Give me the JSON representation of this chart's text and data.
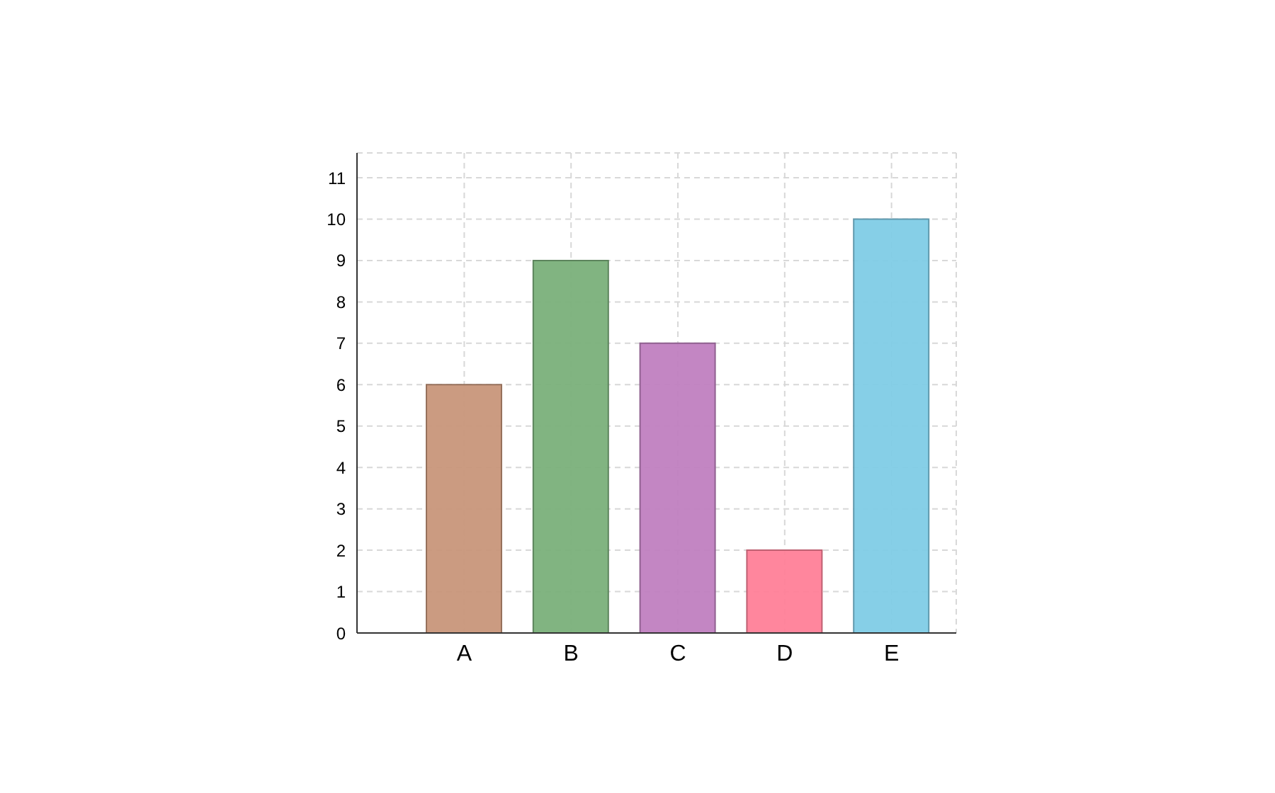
{
  "chart_data": {
    "type": "bar",
    "categories": [
      "A",
      "B",
      "C",
      "D",
      "E"
    ],
    "values": [
      6,
      9,
      7,
      2,
      10
    ],
    "colors": [
      "#c8967a",
      "#7ab07a",
      "#c080c0",
      "#ff8098",
      "#80cce6"
    ],
    "ylim": [
      0,
      11.6
    ],
    "yticks": [
      0,
      1,
      2,
      3,
      4,
      5,
      6,
      7,
      8,
      9,
      10,
      11
    ],
    "grid": true
  }
}
